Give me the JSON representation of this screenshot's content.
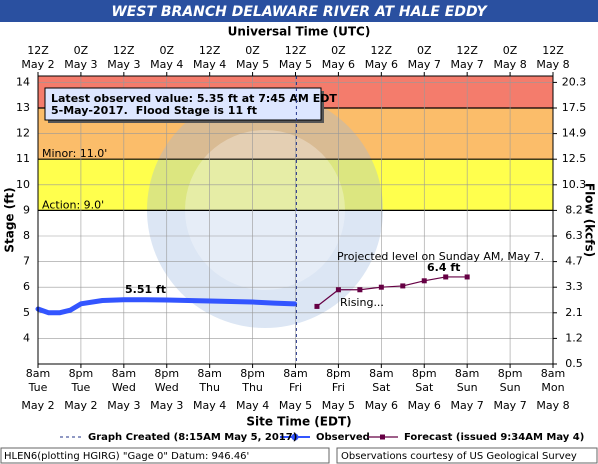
{
  "title": "WEST BRANCH DELAWARE RIVER AT HALE EDDY",
  "chart_data": {
    "type": "line",
    "top_axis_title": "Universal Time (UTC)",
    "x_axis_title": "Site Time (EDT)",
    "y_axis_title": "Stage (ft)",
    "y2_axis_title": "Flow (kcfs)",
    "xlim": [
      "2017-05-02T08:00",
      "2017-05-08T08:00"
    ],
    "top_ticks": [
      {
        "value": "2017-05-02T08:00",
        "time": "12Z",
        "date": "May 2"
      },
      {
        "value": "2017-05-02T20:00",
        "time": "0Z",
        "date": "May 3"
      },
      {
        "value": "2017-05-03T08:00",
        "time": "12Z",
        "date": "May 3"
      },
      {
        "value": "2017-05-03T20:00",
        "time": "0Z",
        "date": "May 4"
      },
      {
        "value": "2017-05-04T08:00",
        "time": "12Z",
        "date": "May 4"
      },
      {
        "value": "2017-05-04T20:00",
        "time": "0Z",
        "date": "May 5"
      },
      {
        "value": "2017-05-05T08:00",
        "time": "12Z",
        "date": "May 5"
      },
      {
        "value": "2017-05-05T20:00",
        "time": "0Z",
        "date": "May 6"
      },
      {
        "value": "2017-05-06T08:00",
        "time": "12Z",
        "date": "May 6"
      },
      {
        "value": "2017-05-06T20:00",
        "time": "0Z",
        "date": "May 7"
      },
      {
        "value": "2017-05-07T08:00",
        "time": "12Z",
        "date": "May 7"
      },
      {
        "value": "2017-05-07T20:00",
        "time": "0Z",
        "date": "May 8"
      },
      {
        "value": "2017-05-08T08:00",
        "time": "12Z",
        "date": "May 8"
      }
    ],
    "bottom_ticks": [
      {
        "value": "2017-05-02T08:00",
        "time": "8am",
        "day": "Tue",
        "date": "May 2"
      },
      {
        "value": "2017-05-02T20:00",
        "time": "8pm",
        "day": "Tue",
        "date": "May 2"
      },
      {
        "value": "2017-05-03T08:00",
        "time": "8am",
        "day": "Wed",
        "date": "May 3"
      },
      {
        "value": "2017-05-03T20:00",
        "time": "8pm",
        "day": "Wed",
        "date": "May 3"
      },
      {
        "value": "2017-05-04T08:00",
        "time": "8am",
        "day": "Thu",
        "date": "May 4"
      },
      {
        "value": "2017-05-04T20:00",
        "time": "8pm",
        "day": "Thu",
        "date": "May 4"
      },
      {
        "value": "2017-05-05T08:00",
        "time": "8am",
        "day": "Fri",
        "date": "May 5"
      },
      {
        "value": "2017-05-05T20:00",
        "time": "8pm",
        "day": "Fri",
        "date": "May 5"
      },
      {
        "value": "2017-05-06T08:00",
        "time": "8am",
        "day": "Sat",
        "date": "May 6"
      },
      {
        "value": "2017-05-06T20:00",
        "time": "8pm",
        "day": "Sat",
        "date": "May 6"
      },
      {
        "value": "2017-05-07T08:00",
        "time": "8am",
        "day": "Sun",
        "date": "May 7"
      },
      {
        "value": "2017-05-07T20:00",
        "time": "8pm",
        "day": "Sun",
        "date": "May 7"
      },
      {
        "value": "2017-05-08T08:00",
        "time": "8am",
        "day": "Mon",
        "date": "May 8"
      }
    ],
    "ylim": [
      3,
      14.25
    ],
    "yticks": [
      4,
      5,
      6,
      7,
      8,
      9,
      10,
      11,
      12,
      13,
      14
    ],
    "flow_ticks": [
      {
        "stage": 3,
        "flow": 0.5
      },
      {
        "stage": 4,
        "flow": 1.2
      },
      {
        "stage": 5,
        "flow": 2.1
      },
      {
        "stage": 6,
        "flow": 3.3
      },
      {
        "stage": 7,
        "flow": 4.7
      },
      {
        "stage": 8,
        "flow": 6.3
      },
      {
        "stage": 9,
        "flow": 8.2
      },
      {
        "stage": 10,
        "flow": 10.3
      },
      {
        "stage": 11,
        "flow": 12.5
      },
      {
        "stage": 12,
        "flow": 14.9
      },
      {
        "stage": 13,
        "flow": 17.5
      },
      {
        "stage": 14,
        "flow": 20.3
      }
    ],
    "grid": true,
    "flood_bands": [
      {
        "stage": 9,
        "color": "#ffff4d",
        "label": "Action: 9.0'"
      },
      {
        "stage": 11,
        "color": "#fbbd6a",
        "label": "Minor: 11.0'"
      },
      {
        "stage": 13,
        "color": "#f47c6c"
      }
    ],
    "series": [
      {
        "name": "Observed",
        "color": "#3355ff",
        "x": [
          "2017-05-02T08:00",
          "2017-05-02T11:00",
          "2017-05-02T14:00",
          "2017-05-02T17:00",
          "2017-05-02T20:00",
          "2017-05-03T02:00",
          "2017-05-03T08:00",
          "2017-05-03T14:00",
          "2017-05-03T20:00",
          "2017-05-04T02:00",
          "2017-05-04T08:00",
          "2017-05-04T14:00",
          "2017-05-04T20:00",
          "2017-05-05T02:00",
          "2017-05-05T07:45"
        ],
        "values": [
          5.15,
          5.0,
          5.0,
          5.1,
          5.35,
          5.48,
          5.51,
          5.51,
          5.5,
          5.48,
          5.46,
          5.44,
          5.42,
          5.38,
          5.35
        ]
      },
      {
        "name": "Forecast (issued 9:34AM May 4)",
        "color": "#660044",
        "x": [
          "2017-05-05T14:00",
          "2017-05-05T20:00",
          "2017-05-06T02:00",
          "2017-05-06T08:00",
          "2017-05-06T14:00",
          "2017-05-06T20:00",
          "2017-05-07T02:00",
          "2017-05-07T08:00"
        ],
        "values": [
          5.25,
          5.9,
          5.9,
          6.0,
          6.05,
          6.25,
          6.4,
          6.4
        ]
      }
    ],
    "graph_created": {
      "x": "2017-05-05T08:15",
      "label": "Graph Created (8:15AM May 5, 2017)"
    },
    "latest_box": {
      "line1": "Latest observed value: 5.35 ft at 7:45 AM EDT",
      "line2a": "5-May-2017.",
      "line2b": "Flood Stage is 11 ft"
    },
    "peak_label": "5.51 ft",
    "forecast_label": "6.4 ft",
    "projected_note": "Projected level on Sunday AM, May 7.",
    "rising_note": "Rising..."
  },
  "footer": {
    "left": "HLEN6(plotting HGIRG) \"Gage 0\" Datum: 946.46'",
    "right": "Observations courtesy of US Geological Survey"
  }
}
